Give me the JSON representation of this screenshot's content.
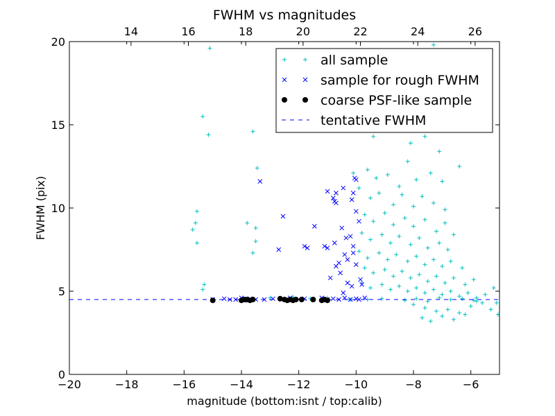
{
  "chart_data": {
    "type": "scatter",
    "title": "FWHM vs magnitudes",
    "xlabel": "magnitude (bottom:isnt / top:calib)",
    "ylabel": "FWHM (pix)",
    "xlim": [
      -20,
      -5
    ],
    "ylim": [
      0,
      20
    ],
    "xticks": [
      "-20",
      "-18",
      "-16",
      "-14",
      "-12",
      "-10",
      "-8",
      "-6"
    ],
    "yticks": [
      "0",
      "5",
      "10",
      "15",
      "20"
    ],
    "top_axis": {
      "offset": 31.85,
      "ticks": [
        "14",
        "16",
        "18",
        "20",
        "22",
        "24",
        "26"
      ]
    },
    "grid": false,
    "legend_position": "top-right",
    "colors": {
      "all": "#00bfbf",
      "rough": "#0000ff",
      "coarse": "#000000",
      "tentative": "#0000ff"
    },
    "legend": [
      {
        "label": "all sample",
        "marker": "+"
      },
      {
        "label": "sample for rough FWHM",
        "marker": "x"
      },
      {
        "label": "coarse PSF-like sample",
        "marker": "o"
      },
      {
        "label": "tentative FWHM",
        "marker": "dashed-line"
      }
    ],
    "tentative_fwhm": 4.5,
    "series": [
      {
        "name": "all sample",
        "points": [
          [
            -15.1,
            19.6
          ],
          [
            -15.35,
            15.5
          ],
          [
            -15.15,
            14.4
          ],
          [
            -13.6,
            14.6
          ],
          [
            -15.55,
            9.8
          ],
          [
            -15.6,
            9.1
          ],
          [
            -15.7,
            8.7
          ],
          [
            -15.55,
            7.9
          ],
          [
            -15.3,
            5.4
          ],
          [
            -15.35,
            5.1
          ],
          [
            -13.8,
            9.1
          ],
          [
            -13.5,
            8.8
          ],
          [
            -13.5,
            8.0
          ],
          [
            -13.6,
            7.3
          ],
          [
            -13.45,
            12.4
          ],
          [
            -14.95,
            4.5
          ],
          [
            -13.0,
            4.6
          ],
          [
            -12.2,
            4.65
          ],
          [
            -11.6,
            4.55
          ],
          [
            -11.0,
            4.6
          ],
          [
            -10.2,
            4.5
          ],
          [
            -9.6,
            4.5
          ],
          [
            -9.1,
            4.55
          ],
          [
            -7.3,
            19.8
          ],
          [
            -10.5,
            14.7
          ],
          [
            -9.4,
            14.3
          ],
          [
            -9.0,
            15.4
          ],
          [
            -8.6,
            14.8
          ],
          [
            -8.1,
            13.9
          ],
          [
            -7.6,
            14.3
          ],
          [
            -7.1,
            13.4
          ],
          [
            -6.4,
            12.5
          ],
          [
            -10.1,
            12.1
          ],
          [
            -9.6,
            12.3
          ],
          [
            -9.3,
            11.8
          ],
          [
            -8.9,
            12.0
          ],
          [
            -8.5,
            11.3
          ],
          [
            -8.2,
            12.8
          ],
          [
            -7.9,
            11.7
          ],
          [
            -7.4,
            12.1
          ],
          [
            -7.0,
            11.6
          ],
          [
            -9.9,
            11.2
          ],
          [
            -9.5,
            10.6
          ],
          [
            -9.2,
            10.9
          ],
          [
            -8.7,
            10.2
          ],
          [
            -8.4,
            10.8
          ],
          [
            -8.0,
            10.1
          ],
          [
            -7.7,
            10.7
          ],
          [
            -7.3,
            10.3
          ],
          [
            -6.9,
            9.9
          ],
          [
            -9.7,
            9.6
          ],
          [
            -9.4,
            9.2
          ],
          [
            -9.0,
            9.7
          ],
          [
            -8.7,
            9.0
          ],
          [
            -8.3,
            9.4
          ],
          [
            -8.0,
            8.9
          ],
          [
            -7.6,
            9.3
          ],
          [
            -7.2,
            8.6
          ],
          [
            -6.9,
            9.1
          ],
          [
            -6.6,
            8.4
          ],
          [
            -9.8,
            8.5
          ],
          [
            -9.5,
            8.1
          ],
          [
            -9.1,
            8.4
          ],
          [
            -8.8,
            7.9
          ],
          [
            -8.5,
            8.3
          ],
          [
            -8.1,
            7.8
          ],
          [
            -7.8,
            8.2
          ],
          [
            -7.5,
            7.6
          ],
          [
            -7.1,
            7.9
          ],
          [
            -6.8,
            7.5
          ],
          [
            -9.9,
            7.4
          ],
          [
            -9.6,
            7.0
          ],
          [
            -9.2,
            7.3
          ],
          [
            -8.9,
            6.9
          ],
          [
            -8.6,
            7.2
          ],
          [
            -8.2,
            6.8
          ],
          [
            -7.9,
            7.1
          ],
          [
            -7.6,
            6.6
          ],
          [
            -7.3,
            6.9
          ],
          [
            -7.0,
            6.5
          ],
          [
            -6.7,
            6.8
          ],
          [
            -6.3,
            6.4
          ],
          [
            -9.7,
            6.4
          ],
          [
            -9.4,
            6.1
          ],
          [
            -9.0,
            6.3
          ],
          [
            -8.7,
            5.9
          ],
          [
            -8.4,
            6.2
          ],
          [
            -8.1,
            5.8
          ],
          [
            -7.8,
            6.0
          ],
          [
            -7.5,
            5.6
          ],
          [
            -7.2,
            5.9
          ],
          [
            -6.9,
            5.5
          ],
          [
            -6.6,
            5.8
          ],
          [
            -6.2,
            5.4
          ],
          [
            -5.9,
            5.7
          ],
          [
            -9.8,
            5.5
          ],
          [
            -9.5,
            5.2
          ],
          [
            -9.1,
            5.4
          ],
          [
            -8.8,
            5.1
          ],
          [
            -8.5,
            5.3
          ],
          [
            -8.2,
            5.0
          ],
          [
            -7.9,
            5.2
          ],
          [
            -7.6,
            4.9
          ],
          [
            -7.3,
            5.1
          ],
          [
            -7.0,
            4.8
          ],
          [
            -6.7,
            5.0
          ],
          [
            -6.4,
            4.7
          ],
          [
            -6.1,
            4.9
          ],
          [
            -5.8,
            4.6
          ],
          [
            -5.5,
            4.8
          ],
          [
            -5.2,
            5.2
          ],
          [
            -8.0,
            4.2
          ],
          [
            -7.6,
            4.0
          ],
          [
            -7.2,
            3.8
          ],
          [
            -6.8,
            3.9
          ],
          [
            -6.4,
            3.7
          ],
          [
            -6.0,
            4.1
          ],
          [
            -5.6,
            4.3
          ],
          [
            -5.3,
            3.9
          ],
          [
            -5.05,
            3.6
          ],
          [
            -5.1,
            4.3
          ],
          [
            -7.7,
            3.4
          ],
          [
            -7.4,
            3.2
          ],
          [
            -7.0,
            3.5
          ],
          [
            -6.6,
            3.3
          ],
          [
            -6.2,
            3.6
          ],
          [
            -5.8,
            4.4
          ],
          [
            -8.3,
            4.45
          ],
          [
            -7.9,
            4.55
          ],
          [
            -7.5,
            4.4
          ],
          [
            -7.1,
            4.6
          ],
          [
            -6.7,
            4.5
          ],
          [
            -6.3,
            4.55
          ],
          [
            -5.9,
            4.45
          ]
        ]
      },
      {
        "name": "sample for rough FWHM",
        "points": [
          [
            -13.35,
            11.6
          ],
          [
            -12.55,
            9.5
          ],
          [
            -11.45,
            8.9
          ],
          [
            -12.7,
            7.5
          ],
          [
            -11.8,
            7.7
          ],
          [
            -11.7,
            7.6
          ],
          [
            -11.1,
            7.7
          ],
          [
            -11.0,
            11.0
          ],
          [
            -10.7,
            10.9
          ],
          [
            -10.45,
            11.2
          ],
          [
            -10.05,
            11.8
          ],
          [
            -10.0,
            11.7
          ],
          [
            -10.8,
            10.6
          ],
          [
            -10.75,
            10.4
          ],
          [
            -10.7,
            10.3
          ],
          [
            -10.1,
            10.9
          ],
          [
            -10.15,
            10.5
          ],
          [
            -10.0,
            9.8
          ],
          [
            -9.9,
            9.2
          ],
          [
            -10.2,
            8.3
          ],
          [
            -10.5,
            8.8
          ],
          [
            -10.35,
            8.2
          ],
          [
            -10.1,
            7.7
          ],
          [
            -10.4,
            7.2
          ],
          [
            -10.6,
            6.7
          ],
          [
            -10.7,
            6.5
          ],
          [
            -10.55,
            6.1
          ],
          [
            -10.3,
            5.5
          ],
          [
            -10.15,
            5.3
          ],
          [
            -9.85,
            5.7
          ],
          [
            -9.8,
            5.4
          ],
          [
            -10.9,
            5.8
          ],
          [
            -11.0,
            7.6
          ],
          [
            -10.75,
            7.9
          ],
          [
            -10.3,
            6.9
          ],
          [
            -10.0,
            6.6
          ],
          [
            -10.1,
            7.3
          ],
          [
            -10.45,
            4.9
          ],
          [
            -15.0,
            4.5
          ],
          [
            -14.6,
            4.55
          ],
          [
            -14.4,
            4.5
          ],
          [
            -14.2,
            4.5
          ],
          [
            -14.0,
            4.6
          ],
          [
            -13.9,
            4.45
          ],
          [
            -13.7,
            4.55
          ],
          [
            -13.5,
            4.5
          ],
          [
            -13.2,
            4.5
          ],
          [
            -12.9,
            4.55
          ],
          [
            -12.6,
            4.5
          ],
          [
            -12.3,
            4.6
          ],
          [
            -12.0,
            4.5
          ],
          [
            -11.8,
            4.55
          ],
          [
            -11.5,
            4.5
          ],
          [
            -11.2,
            4.6
          ],
          [
            -11.0,
            4.5
          ],
          [
            -10.8,
            4.55
          ],
          [
            -10.6,
            4.5
          ],
          [
            -10.4,
            4.6
          ],
          [
            -10.2,
            4.5
          ],
          [
            -10.0,
            4.55
          ],
          [
            -9.9,
            4.5
          ],
          [
            -9.7,
            4.6
          ]
        ]
      },
      {
        "name": "coarse PSF-like sample",
        "points": [
          [
            -15.0,
            4.45
          ],
          [
            -14.0,
            4.45
          ],
          [
            -13.9,
            4.5
          ],
          [
            -13.8,
            4.5
          ],
          [
            -13.7,
            4.45
          ],
          [
            -13.6,
            4.5
          ],
          [
            -12.65,
            4.55
          ],
          [
            -12.5,
            4.5
          ],
          [
            -12.4,
            4.45
          ],
          [
            -12.3,
            4.5
          ],
          [
            -12.2,
            4.45
          ],
          [
            -12.1,
            4.5
          ],
          [
            -11.9,
            4.5
          ],
          [
            -11.5,
            4.5
          ],
          [
            -11.2,
            4.45
          ],
          [
            -11.1,
            4.5
          ],
          [
            -11.0,
            4.45
          ]
        ]
      }
    ]
  }
}
